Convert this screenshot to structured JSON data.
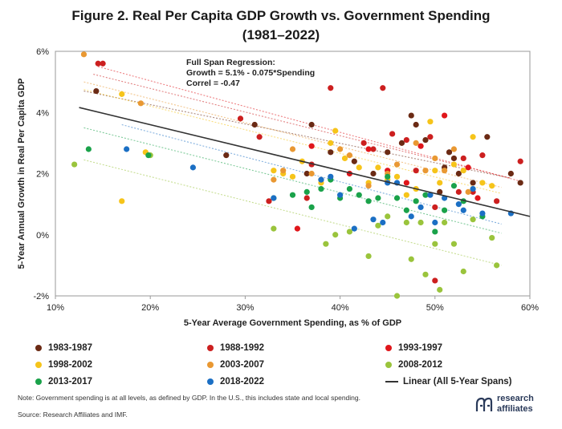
{
  "figure": {
    "title_line1": "Figure 2. Real Per Capita GDP Growth vs. Government Spending",
    "title_line2": "(1981–2022)",
    "note": "Note: Government spending is at all levels, as defined by GDP. In the U.S., this includes state and local spending.",
    "source": "Source: Research Affiliates and IMF.",
    "logo_line1": "research",
    "logo_line2": "affiliates"
  },
  "chart_data": {
    "type": "scatter",
    "title": "Figure 2. Real Per Capita GDP Growth vs. Government Spending (1981–2022)",
    "xlabel": "5-Year Average Government Spending, as % of GDP",
    "ylabel": "5-Year Annual Growth in Real Per Capita GDP",
    "xlim": [
      10,
      60
    ],
    "ylim": [
      -2,
      6
    ],
    "x_ticks": [
      10,
      20,
      30,
      40,
      50,
      60
    ],
    "x_tick_labels": [
      "10%",
      "20%",
      "30%",
      "40%",
      "50%",
      "60%"
    ],
    "y_ticks": [
      -2,
      0,
      2,
      4,
      6
    ],
    "y_tick_labels": [
      "-2%",
      "0%",
      "2%",
      "4%",
      "6%"
    ],
    "annotation": [
      "Full Span Regression:",
      "Growth = 5.1% - 0.075*Spending",
      "Correl = -0.47"
    ],
    "full_regression": {
      "name": "Linear (All 5-Year Spans)",
      "intercept": 5.1,
      "slope": -0.075,
      "color": "#333333"
    },
    "series": [
      {
        "name": "1983-1987",
        "color": "#6b2a14",
        "trend": [
          [
            13,
            4.7
          ],
          [
            58,
            1.85
          ]
        ],
        "points": [
          [
            14.3,
            4.7
          ],
          [
            28,
            2.6
          ],
          [
            31,
            3.6
          ],
          [
            36.5,
            2
          ],
          [
            37,
            3.6
          ],
          [
            39,
            2.7
          ],
          [
            41.5,
            2.4
          ],
          [
            43.5,
            2
          ],
          [
            45,
            2.7
          ],
          [
            46.5,
            3
          ],
          [
            47.5,
            3.9
          ],
          [
            48,
            3.6
          ],
          [
            49,
            3.1
          ],
          [
            50.5,
            1.4
          ],
          [
            51,
            2.2
          ],
          [
            51.5,
            2.7
          ],
          [
            52,
            2.5
          ],
          [
            52.5,
            2
          ],
          [
            54,
            1.7
          ],
          [
            55.5,
            3.2
          ],
          [
            58,
            2
          ],
          [
            59,
            1.7
          ]
        ]
      },
      {
        "name": "1988-1992",
        "color": "#cc1f1f",
        "trend": [
          [
            14,
            5.25
          ],
          [
            58,
            1.85
          ]
        ],
        "points": [
          [
            14.5,
            5.6
          ],
          [
            15,
            5.6
          ],
          [
            29.5,
            3.8
          ],
          [
            31.5,
            3.2
          ],
          [
            32.5,
            1.1
          ],
          [
            36.5,
            1.2
          ],
          [
            37,
            2.3
          ],
          [
            39,
            4.8
          ],
          [
            42.5,
            3
          ],
          [
            43.5,
            2.8
          ],
          [
            44.5,
            4.8
          ],
          [
            45.5,
            3.3
          ],
          [
            47,
            3.1
          ],
          [
            48,
            2.1
          ],
          [
            49.5,
            3.2
          ],
          [
            50,
            0.9
          ],
          [
            50,
            -1.5
          ],
          [
            52.5,
            1.4
          ],
          [
            53,
            2.5
          ],
          [
            54,
            1.4
          ],
          [
            55,
            2.6
          ],
          [
            56.5,
            1.1
          ],
          [
            59,
            2.4
          ]
        ]
      },
      {
        "name": "1993-1997",
        "color": "#e0161b",
        "trend": [
          [
            14.5,
            5.5
          ],
          [
            59,
            1.75
          ]
        ],
        "points": [
          [
            35.5,
            0.2
          ],
          [
            37,
            2.9
          ],
          [
            41,
            2
          ],
          [
            43,
            2.8
          ],
          [
            45,
            2.1
          ],
          [
            47,
            1.7
          ],
          [
            48.5,
            2.9
          ],
          [
            51,
            3.9
          ],
          [
            53.5,
            2.2
          ],
          [
            54.5,
            1.2
          ]
        ]
      },
      {
        "name": "1998-2002",
        "color": "#f6c41a",
        "trend": [
          [
            13,
            4.75
          ],
          [
            57,
            1.35
          ]
        ],
        "points": [
          [
            17,
            4.6
          ],
          [
            17,
            1.1
          ],
          [
            19.5,
            2.7
          ],
          [
            33,
            2.1
          ],
          [
            34,
            2
          ],
          [
            35,
            1.9
          ],
          [
            36,
            2.4
          ],
          [
            38,
            1.7
          ],
          [
            39,
            3
          ],
          [
            39.5,
            3.4
          ],
          [
            40.5,
            2.5
          ],
          [
            42,
            2.2
          ],
          [
            43,
            1.7
          ],
          [
            44,
            2.2
          ],
          [
            45,
            1.8
          ],
          [
            46,
            1.9
          ],
          [
            47,
            1.3
          ],
          [
            48,
            1.5
          ],
          [
            49.5,
            3.7
          ],
          [
            50,
            2.1
          ],
          [
            50.5,
            1.7
          ],
          [
            52,
            2.3
          ],
          [
            53,
            2.1
          ],
          [
            54,
            3.2
          ],
          [
            55,
            1.7
          ],
          [
            56,
            1.6
          ]
        ]
      },
      {
        "name": "2003-2007",
        "color": "#e99832",
        "trend": [
          [
            13,
            5.0
          ],
          [
            57,
            1.55
          ]
        ],
        "points": [
          [
            13,
            5.9
          ],
          [
            19,
            4.3
          ],
          [
            33,
            1.8
          ],
          [
            34,
            2.1
          ],
          [
            35,
            2.8
          ],
          [
            37,
            2
          ],
          [
            38,
            1.8
          ],
          [
            40,
            2.8
          ],
          [
            41,
            2.6
          ],
          [
            43,
            1.6
          ],
          [
            45,
            2
          ],
          [
            46,
            2.3
          ],
          [
            48,
            3
          ],
          [
            49,
            2.1
          ],
          [
            50,
            2.5
          ],
          [
            51,
            2.1
          ],
          [
            52,
            2.8
          ],
          [
            53.5,
            1.4
          ]
        ]
      },
      {
        "name": "2008-2012",
        "color": "#9ac43c",
        "trend": [
          [
            13,
            2.45
          ],
          [
            57,
            -1.0
          ]
        ],
        "points": [
          [
            12,
            2.3
          ],
          [
            20,
            2.6
          ],
          [
            33,
            0.2
          ],
          [
            38.5,
            -0.3
          ],
          [
            39.5,
            0
          ],
          [
            41,
            0.1
          ],
          [
            43,
            -0.7
          ],
          [
            44,
            0.3
          ],
          [
            45,
            0.6
          ],
          [
            46,
            -2
          ],
          [
            47,
            0.4
          ],
          [
            47.5,
            -0.8
          ],
          [
            48.5,
            0.4
          ],
          [
            49,
            -1.3
          ],
          [
            50,
            -0.3
          ],
          [
            50.5,
            -1.8
          ],
          [
            51,
            0.4
          ],
          [
            52,
            -0.3
          ],
          [
            53,
            -1.2
          ],
          [
            54,
            0.5
          ],
          [
            56,
            -0.1
          ],
          [
            56.5,
            -1
          ]
        ]
      },
      {
        "name": "2013-2017",
        "color": "#1aa24a",
        "trend": [
          [
            13,
            3.5
          ],
          [
            57,
            0.05
          ]
        ],
        "points": [
          [
            13.5,
            2.8
          ],
          [
            19.8,
            2.6
          ],
          [
            33,
            1.2
          ],
          [
            35,
            1.3
          ],
          [
            36.5,
            1.4
          ],
          [
            37,
            0.9
          ],
          [
            38,
            1.5
          ],
          [
            39,
            1.8
          ],
          [
            40,
            1.2
          ],
          [
            41,
            1.5
          ],
          [
            42,
            1.3
          ],
          [
            43,
            1.1
          ],
          [
            44,
            1.2
          ],
          [
            45,
            1.9
          ],
          [
            46,
            1.2
          ],
          [
            47,
            0.8
          ],
          [
            48,
            1.1
          ],
          [
            49,
            1.3
          ],
          [
            50,
            0.1
          ],
          [
            51,
            0.8
          ],
          [
            52,
            1.6
          ],
          [
            53,
            1.1
          ],
          [
            55,
            0.6
          ]
        ]
      },
      {
        "name": "2018-2022",
        "color": "#1b6fc4",
        "trend": [
          [
            17,
            3.6
          ],
          [
            57,
            0.35
          ]
        ],
        "points": [
          [
            17.5,
            2.8
          ],
          [
            24.5,
            2.2
          ],
          [
            33,
            1.2
          ],
          [
            38,
            1.8
          ],
          [
            39,
            1.9
          ],
          [
            40,
            1.3
          ],
          [
            41.5,
            0.2
          ],
          [
            43.5,
            0.5
          ],
          [
            44.5,
            0.4
          ],
          [
            45,
            1.7
          ],
          [
            46,
            1.7
          ],
          [
            47.5,
            0.6
          ],
          [
            48.5,
            0.9
          ],
          [
            49.5,
            1.3
          ],
          [
            50,
            0.4
          ],
          [
            51,
            1.2
          ],
          [
            52.5,
            1
          ],
          [
            53,
            0.8
          ],
          [
            54,
            1.5
          ],
          [
            55,
            0.7
          ],
          [
            58,
            0.7
          ]
        ]
      }
    ]
  },
  "legend": [
    {
      "label": "1983-1987",
      "color": "#6b2a14"
    },
    {
      "label": "1988-1992",
      "color": "#cc1f1f"
    },
    {
      "label": "1993-1997",
      "color": "#e0161b"
    },
    {
      "label": "1998-2002",
      "color": "#f6c41a"
    },
    {
      "label": "2003-2007",
      "color": "#e99832"
    },
    {
      "label": "2008-2012",
      "color": "#9ac43c"
    },
    {
      "label": "2013-2017",
      "color": "#1aa24a"
    },
    {
      "label": "2018-2022",
      "color": "#1b6fc4"
    },
    {
      "label": "Linear (All 5-Year Spans)",
      "color": "#333333"
    }
  ]
}
